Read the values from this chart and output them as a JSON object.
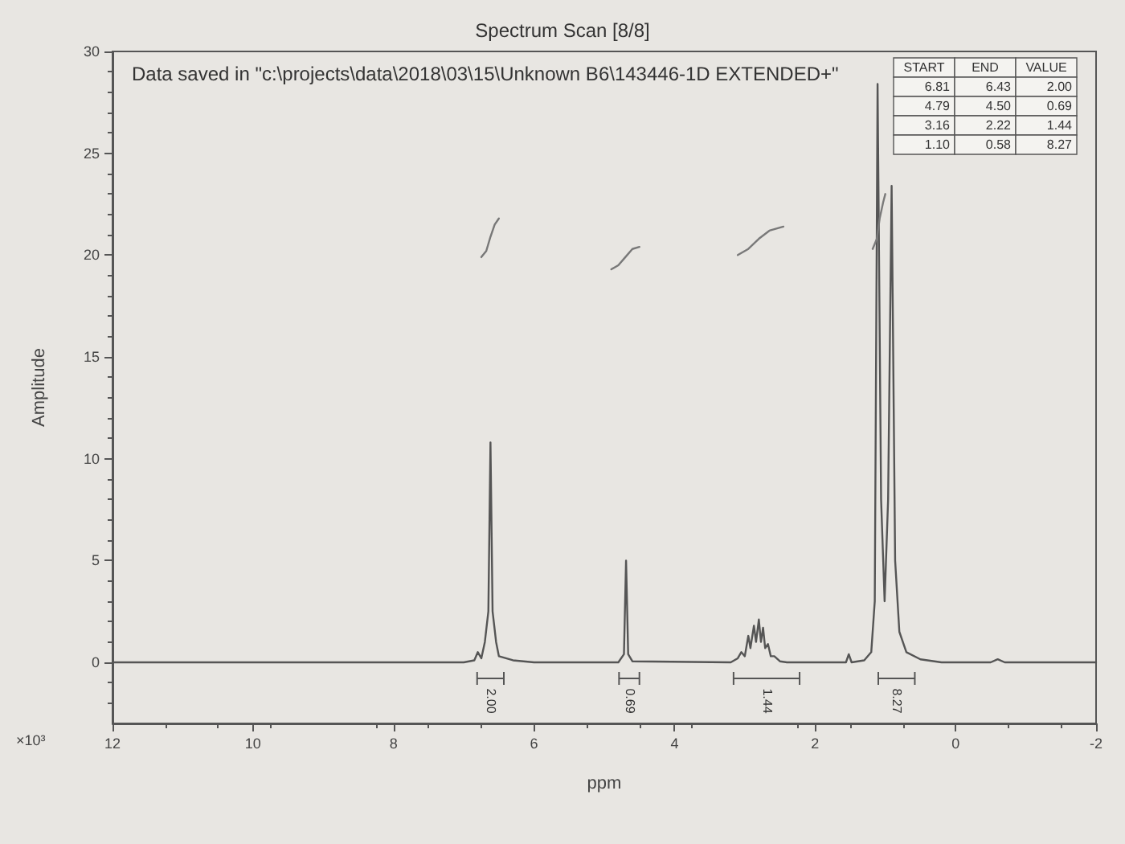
{
  "chart_data": {
    "type": "line",
    "title": "Spectrum Scan [8/8]",
    "subtitle": "Data saved in \"c:\\projects\\data\\2018\\03\\15\\Unknown B6\\143446-1D EXTENDED+\"",
    "xlabel": "ppm",
    "ylabel": "Amplitude",
    "xlim": [
      12,
      -2
    ],
    "xticks": [
      12,
      10,
      8,
      6,
      4,
      2,
      0,
      -2
    ],
    "ylim": [
      -3,
      30
    ],
    "yticks": [
      0,
      5,
      10,
      15,
      20,
      25,
      30
    ],
    "marker": "none",
    "line_style": "solid",
    "series": [
      {
        "color": "#555555",
        "x": [
          12,
          7.0,
          6.85,
          6.8,
          6.75,
          6.7,
          6.68,
          6.65,
          6.62,
          6.59,
          6.56,
          6.54,
          6.5,
          6.4,
          6.3,
          6.0,
          4.8,
          4.72,
          4.69,
          4.66,
          4.6,
          3.2,
          3.1,
          3.05,
          3.0,
          2.95,
          2.92,
          2.87,
          2.84,
          2.8,
          2.77,
          2.74,
          2.71,
          2.67,
          2.63,
          2.58,
          2.5,
          2.4,
          1.56,
          1.52,
          1.48,
          1.3,
          1.2,
          1.15,
          1.11,
          1.06,
          1.01,
          0.96,
          0.91,
          0.86,
          0.8,
          0.7,
          0.5,
          0.2,
          -0.5,
          -0.6,
          -0.7,
          -2
        ],
        "values": [
          0,
          0,
          0.1,
          0.5,
          0.2,
          1.0,
          1.6,
          2.5,
          10.8,
          2.5,
          1.6,
          1.0,
          0.3,
          0.2,
          0.1,
          0,
          0,
          0.4,
          5.0,
          0.4,
          0.05,
          0,
          0.2,
          0.5,
          0.3,
          1.3,
          0.7,
          1.8,
          1.0,
          2.1,
          1.0,
          1.7,
          0.7,
          0.9,
          0.3,
          0.3,
          0.05,
          0,
          0,
          0.4,
          0,
          0.1,
          0.5,
          3,
          28.4,
          8,
          3,
          8,
          23.4,
          5,
          1.5,
          0.5,
          0.15,
          0,
          0,
          0.15,
          0,
          0
        ]
      },
      {
        "color": "#777777",
        "x": [
          6.75,
          6.68,
          6.62,
          6.56,
          6.5
        ],
        "values": [
          19.9,
          20.2,
          20.9,
          21.5,
          21.8
        ]
      },
      {
        "color": "#787878",
        "x": [
          4.9,
          4.8,
          4.7,
          4.6,
          4.5
        ],
        "values": [
          19.3,
          19.5,
          19.9,
          20.3,
          20.4
        ]
      },
      {
        "color": "#797979",
        "x": [
          3.1,
          2.95,
          2.8,
          2.65,
          2.45
        ],
        "values": [
          20.0,
          20.3,
          20.8,
          21.2,
          21.4
        ]
      },
      {
        "color": "#7a7a7a",
        "x": [
          1.18,
          1.12,
          1.08,
          1.03,
          1.0
        ],
        "values": [
          20.3,
          20.8,
          21.8,
          22.6,
          23.0
        ]
      }
    ],
    "annotations": [
      "×10³",
      "START",
      "END",
      "VALUE",
      "6.81",
      "6.43",
      "2.00",
      "4.79",
      "4.50",
      "0.69",
      "3.16",
      "2.22",
      "1.44",
      "1.10",
      "0.58",
      "8.27",
      "2.00",
      "0.69",
      "1.44",
      "8.27"
    ]
  }
}
